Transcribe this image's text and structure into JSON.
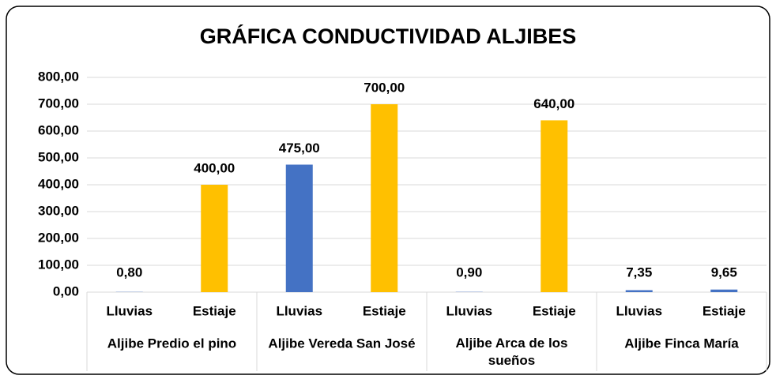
{
  "chart_data": {
    "type": "bar",
    "title": "GRÁFICA CONDUCTIVIDAD ALJIBES",
    "categories": [
      "Lluvias",
      "Estiaje",
      "Lluvias",
      "Estiaje",
      "Lluvias",
      "Estiaje",
      "Lluvias",
      "Estiaje"
    ],
    "groups": [
      "Aljibe Predio el pino",
      "Aljibe Vereda San José",
      "Aljibe Arca de los sueños",
      "Aljibe Finca María"
    ],
    "values": [
      0.8,
      400,
      475,
      700,
      0.9,
      640,
      7.35,
      9.65
    ],
    "value_labels": [
      "0,80",
      "400,00",
      "475,00",
      "700,00",
      "0,90",
      "640,00",
      "7,35",
      "9,65"
    ],
    "colors": [
      "#4472c4",
      "#ffc000",
      "#4472c4",
      "#ffc000",
      "#4472c4",
      "#ffc000",
      "#4472c4",
      "#4472c4"
    ],
    "ylim": [
      0,
      800
    ],
    "yticks": [
      {
        "value": 0,
        "label": "0,00"
      },
      {
        "value": 100,
        "label": "100,00"
      },
      {
        "value": 200,
        "label": "200,00"
      },
      {
        "value": 300,
        "label": "300,00"
      },
      {
        "value": 400,
        "label": "400,00"
      },
      {
        "value": 500,
        "label": "500,00"
      },
      {
        "value": 600,
        "label": "600,00"
      },
      {
        "value": 700,
        "label": "700,00"
      },
      {
        "value": 800,
        "label": "800,00"
      }
    ],
    "grid": true
  }
}
